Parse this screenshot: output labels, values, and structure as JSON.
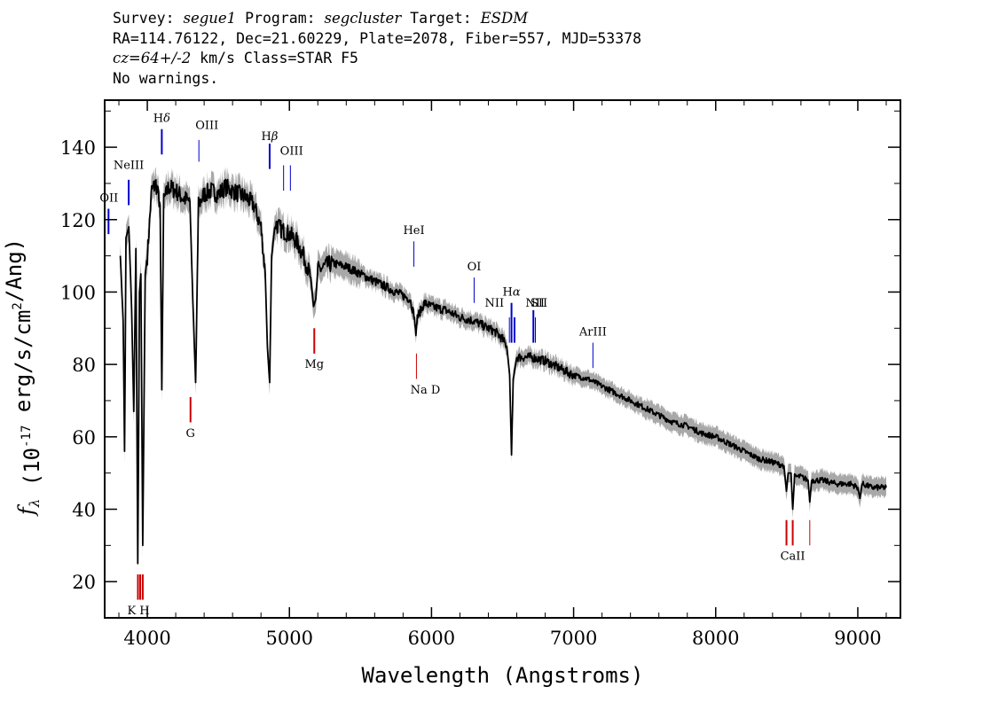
{
  "header": {
    "line1": {
      "survey_label": "Survey: ",
      "survey": "segue1",
      "program_label": " Program: ",
      "program": "segcluster",
      "target_label": " Target: ",
      "target": "ESDM"
    },
    "line2": "RA=114.76122, Dec=21.60229, Plate=2078, Fiber=557, MJD=53378",
    "line3": {
      "cz": "cz=64+/-2",
      "rest": " km/s Class=STAR F5"
    },
    "line4": "No warnings."
  },
  "chart_data": {
    "type": "line",
    "xlabel": "Wavelength (Angstroms)",
    "ylabel": {
      "pre": "(10",
      "exp": "-17",
      "mid": " erg/s/cm",
      "exp2": "2",
      "post": "/Ang)",
      "symbol": "f",
      "subscript": "λ"
    },
    "xlim": [
      3700,
      9300
    ],
    "ylim": [
      10,
      153
    ],
    "x_ticks": [
      4000,
      5000,
      6000,
      7000,
      8000,
      9000
    ],
    "y_ticks": [
      20,
      40,
      60,
      80,
      100,
      120,
      140
    ],
    "spectrum_color": "#000000",
    "error_color": "#a8a8a8",
    "continuum": [
      [
        3810,
        110
      ],
      [
        3830,
        92
      ],
      [
        3840,
        56
      ],
      [
        3850,
        115
      ],
      [
        3870,
        118
      ],
      [
        3890,
        95
      ],
      [
        3905,
        67
      ],
      [
        3920,
        112
      ],
      [
        3933,
        25
      ],
      [
        3945,
        100
      ],
      [
        3955,
        105
      ],
      [
        3968,
        30
      ],
      [
        3985,
        105
      ],
      [
        4000,
        110
      ],
      [
        4030,
        128
      ],
      [
        4060,
        130
      ],
      [
        4090,
        124
      ],
      [
        4102,
        73
      ],
      [
        4115,
        125
      ],
      [
        4150,
        129
      ],
      [
        4200,
        128
      ],
      [
        4250,
        126
      ],
      [
        4300,
        125
      ],
      [
        4320,
        98
      ],
      [
        4340,
        75
      ],
      [
        4360,
        124
      ],
      [
        4400,
        127
      ],
      [
        4450,
        128
      ],
      [
        4500,
        127
      ],
      [
        4550,
        129
      ],
      [
        4600,
        128
      ],
      [
        4650,
        127
      ],
      [
        4700,
        126
      ],
      [
        4750,
        124
      ],
      [
        4800,
        118
      ],
      [
        4830,
        105
      ],
      [
        4845,
        85
      ],
      [
        4861,
        75
      ],
      [
        4875,
        110
      ],
      [
        4900,
        119
      ],
      [
        4950,
        117
      ],
      [
        5000,
        116
      ],
      [
        5050,
        114
      ],
      [
        5100,
        110
      ],
      [
        5150,
        104
      ],
      [
        5170,
        96
      ],
      [
        5185,
        98
      ],
      [
        5200,
        106
      ],
      [
        5300,
        108
      ],
      [
        5400,
        107
      ],
      [
        5500,
        105
      ],
      [
        5600,
        103
      ],
      [
        5700,
        101
      ],
      [
        5800,
        99
      ],
      [
        5850,
        98
      ],
      [
        5880,
        93
      ],
      [
        5890,
        88
      ],
      [
        5900,
        93
      ],
      [
        5950,
        97
      ],
      [
        6000,
        96
      ],
      [
        6100,
        95
      ],
      [
        6200,
        93
      ],
      [
        6300,
        92
      ],
      [
        6400,
        90
      ],
      [
        6450,
        89
      ],
      [
        6500,
        87
      ],
      [
        6530,
        85
      ],
      [
        6550,
        77
      ],
      [
        6563,
        55
      ],
      [
        6575,
        76
      ],
      [
        6600,
        82
      ],
      [
        6700,
        82
      ],
      [
        6800,
        81
      ],
      [
        6900,
        79
      ],
      [
        7000,
        77
      ],
      [
        7100,
        76
      ],
      [
        7200,
        74
      ],
      [
        7300,
        72
      ],
      [
        7400,
        70
      ],
      [
        7500,
        68
      ],
      [
        7600,
        66
      ],
      [
        7700,
        64
      ],
      [
        7800,
        63
      ],
      [
        7900,
        61
      ],
      [
        8000,
        60
      ],
      [
        8100,
        58
      ],
      [
        8200,
        56
      ],
      [
        8300,
        54
      ],
      [
        8400,
        53
      ],
      [
        8480,
        52
      ],
      [
        8498,
        45
      ],
      [
        8510,
        50
      ],
      [
        8530,
        50
      ],
      [
        8542,
        40
      ],
      [
        8555,
        49
      ],
      [
        8600,
        49
      ],
      [
        8650,
        48
      ],
      [
        8662,
        42
      ],
      [
        8675,
        48
      ],
      [
        8750,
        48
      ],
      [
        8850,
        47
      ],
      [
        8950,
        47
      ],
      [
        9000,
        46
      ],
      [
        9015,
        43
      ],
      [
        9030,
        47
      ],
      [
        9100,
        46
      ],
      [
        9200,
        46
      ]
    ],
    "lines": [
      {
        "label": "H",
        "sub": "",
        "greek": "δ",
        "wave": 4102,
        "y1": 138,
        "y2": 145,
        "color": "#0000cc",
        "lw": 2,
        "label_y": 147,
        "anchor": "middle"
      },
      {
        "label": "OIII",
        "wave": 4363,
        "y1": 136,
        "y2": 142,
        "color": "#0000cc",
        "lw": 1,
        "label_y": 145,
        "anchor": "start",
        "dx": -4
      },
      {
        "label": "NeIII",
        "wave": 3869,
        "y1": 124,
        "y2": 131,
        "color": "#0000cc",
        "lw": 2,
        "label_y": 134,
        "anchor": "middle"
      },
      {
        "label": "OII",
        "wave": 3727,
        "y1": 116,
        "y2": 123,
        "color": "#0000cc",
        "lw": 2,
        "label_y": 125,
        "anchor": "end",
        "dx": 11
      },
      {
        "label": "H",
        "greek": "β",
        "wave": 4861,
        "y1": 134,
        "y2": 141,
        "color": "#0000cc",
        "lw": 2,
        "label_y": 142,
        "anchor": "middle"
      },
      {
        "label": "OIII",
        "wave": 4959,
        "y1": 128,
        "y2": 135,
        "color": "#0000cc",
        "lw": 1,
        "label_y": 138,
        "anchor": "start",
        "dx": -4
      },
      {
        "label": "",
        "wave": 5007,
        "y1": 128,
        "y2": 135,
        "color": "#0000cc",
        "lw": 1
      },
      {
        "label": "HeI",
        "wave": 5876,
        "y1": 107,
        "y2": 114,
        "color": "#0000cc",
        "lw": 1,
        "label_y": 116,
        "anchor": "middle"
      },
      {
        "label": "OI",
        "wave": 6300,
        "y1": 97,
        "y2": 104,
        "color": "#0000cc",
        "lw": 1,
        "label_y": 106,
        "anchor": "middle"
      },
      {
        "label": "H",
        "greek": "α",
        "wave": 6563,
        "y1": 86,
        "y2": 97,
        "color": "#0000cc",
        "lw": 2,
        "label_y": 99,
        "anchor": "middle"
      },
      {
        "label": "NII",
        "wave": 6548,
        "y1": 86,
        "y2": 93,
        "color": "#0000cc",
        "lw": 1,
        "label_y": 96,
        "anchor": "end",
        "dx": -6
      },
      {
        "label": "",
        "wave": 6584,
        "y1": 86,
        "y2": 93,
        "color": "#0000cc",
        "lw": 2
      },
      {
        "label": "NII",
        "wave": 6717,
        "y1": 86,
        "y2": 95,
        "color": "#0000cc",
        "lw": 2,
        "label_y": 96,
        "anchor": "middle",
        "dx": 2
      },
      {
        "label": "SII",
        "wave": 6731,
        "y1": 86,
        "y2": 93,
        "color": "#0000cc",
        "lw": 1,
        "label_y": 96,
        "anchor": "middle",
        "dx": 4
      },
      {
        "label": "ArIII",
        "wave": 7136,
        "y1": 79,
        "y2": 86,
        "color": "#0000cc",
        "lw": 1,
        "label_y": 88,
        "anchor": "middle"
      },
      {
        "label": "K H",
        "wave": 3950,
        "y1": 15,
        "y2": 22,
        "color": "#cc0000",
        "lw": 2,
        "label_y": 11,
        "anchor": "middle",
        "dx": -2
      },
      {
        "label": "",
        "wave": 3934,
        "y1": 15,
        "y2": 22,
        "color": "#cc0000",
        "lw": 2
      },
      {
        "label": "",
        "wave": 3968,
        "y1": 15,
        "y2": 22,
        "color": "#cc0000",
        "lw": 2
      },
      {
        "label": "G",
        "wave": 4304,
        "y1": 64,
        "y2": 71,
        "color": "#cc0000",
        "lw": 2,
        "label_y": 60,
        "anchor": "middle"
      },
      {
        "label": "Mg",
        "wave": 5175,
        "y1": 83,
        "y2": 90,
        "color": "#cc0000",
        "lw": 2,
        "label_y": 79,
        "anchor": "middle"
      },
      {
        "label": "Na D",
        "wave": 5894,
        "y1": 76,
        "y2": 83,
        "color": "#cc0000",
        "lw": 1,
        "label_y": 72,
        "anchor": "middle",
        "dx": 10
      },
      {
        "label": "CaII",
        "wave": 8542,
        "y1": 30,
        "y2": 37,
        "color": "#cc0000",
        "lw": 2,
        "label_y": 26,
        "anchor": "middle"
      },
      {
        "label": "",
        "wave": 8498,
        "y1": 30,
        "y2": 37,
        "color": "#cc0000",
        "lw": 2
      },
      {
        "label": "",
        "wave": 8662,
        "y1": 30,
        "y2": 37,
        "color": "#cc0000",
        "lw": 1
      }
    ]
  }
}
